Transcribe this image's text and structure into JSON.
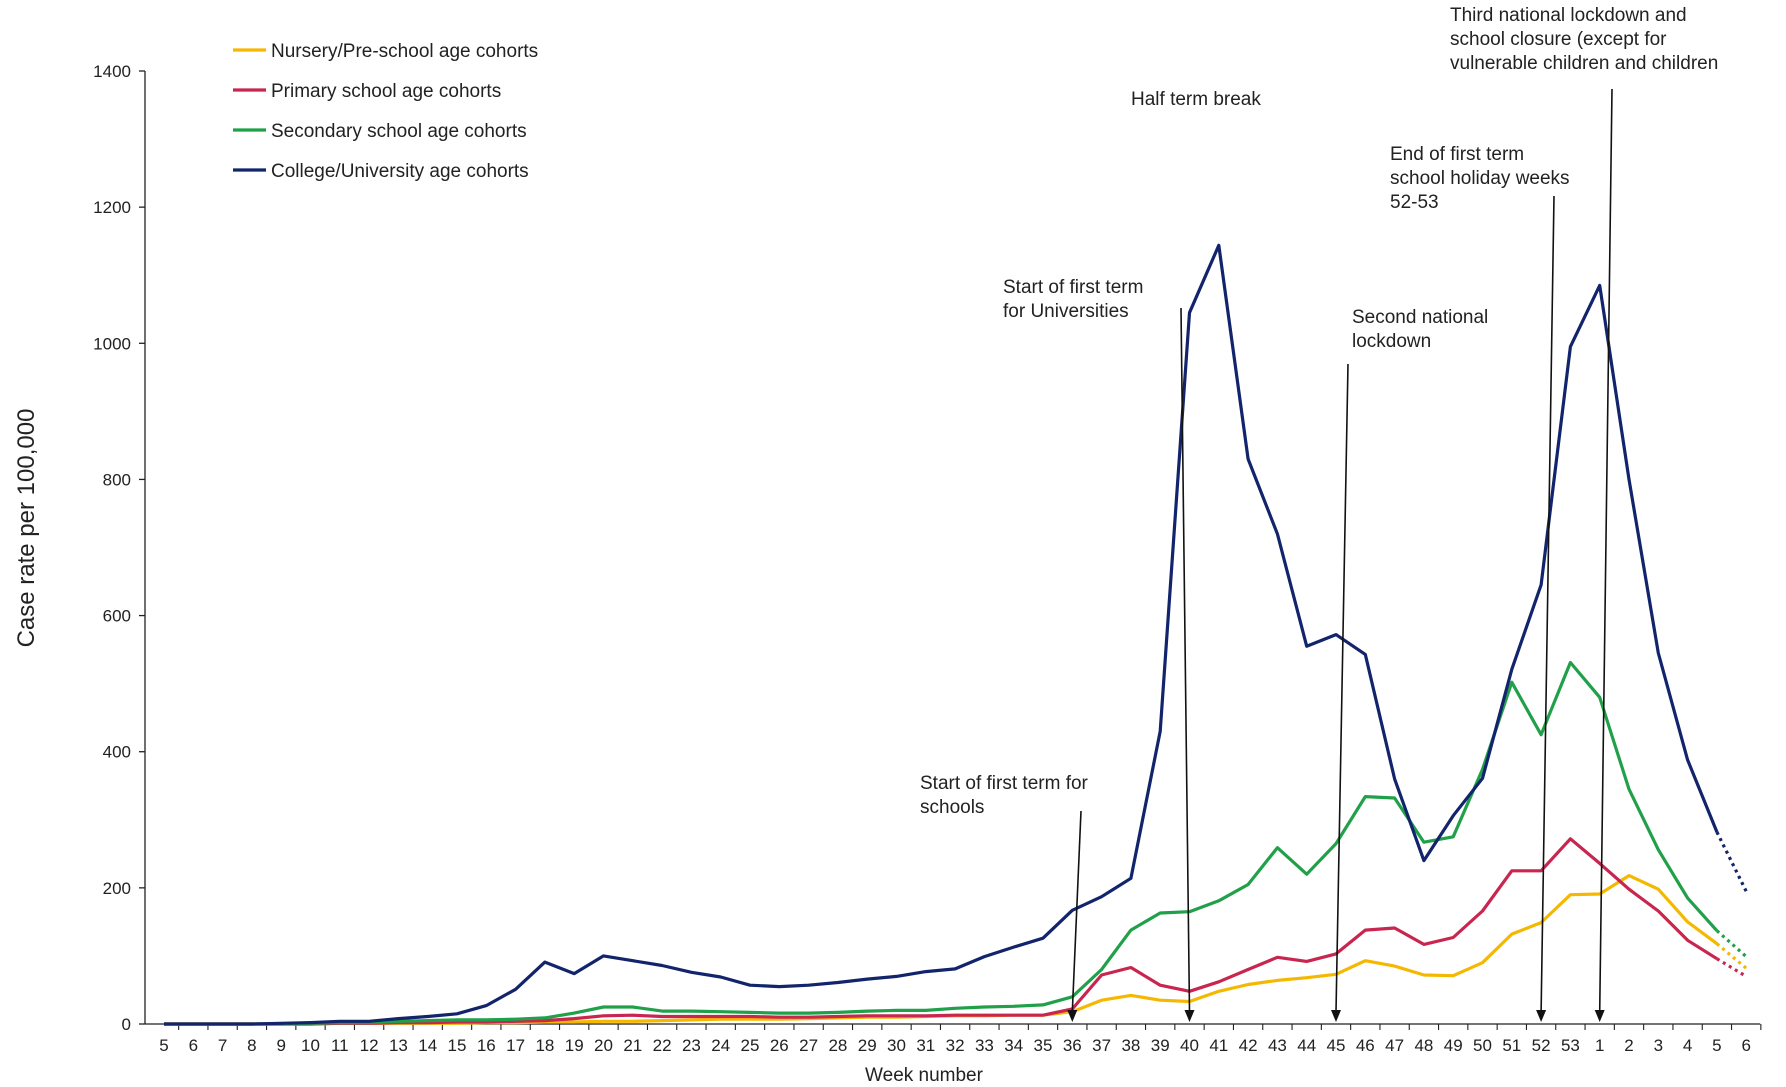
{
  "chart_data": {
    "type": "line",
    "xlabel": "Week number",
    "ylabel": "Case rate per 100,000",
    "ylim": [
      0,
      1400
    ],
    "yticks": [
      0,
      200,
      400,
      600,
      800,
      1000,
      1200,
      1400
    ],
    "categories": [
      "5",
      "6",
      "7",
      "8",
      "9",
      "10",
      "11",
      "12",
      "13",
      "14",
      "15",
      "16",
      "17",
      "18",
      "19",
      "20",
      "21",
      "22",
      "23",
      "24",
      "25",
      "26",
      "27",
      "28",
      "29",
      "30",
      "31",
      "32",
      "33",
      "34",
      "35",
      "36",
      "37",
      "38",
      "39",
      "40",
      "41",
      "42",
      "43",
      "44",
      "45",
      "46",
      "47",
      "48",
      "49",
      "50",
      "51",
      "52",
      "53",
      "1",
      "2",
      "3",
      "4",
      "5",
      "6"
    ],
    "legend_position": "top-left",
    "dotted_from_index": 53,
    "series": [
      {
        "name": "Nursery/Pre-school age cohorts",
        "color": "#F5B800",
        "values": [
          0,
          0,
          0,
          0,
          0,
          0,
          1,
          1,
          1,
          1,
          1,
          2,
          2,
          3,
          3,
          4,
          4,
          5,
          6,
          7,
          7,
          7,
          8,
          9,
          10,
          10,
          11,
          12,
          12,
          13,
          13,
          18,
          35,
          42,
          35,
          33,
          48,
          58,
          64,
          68,
          73,
          93,
          85,
          72,
          71,
          90,
          132,
          149,
          190,
          191,
          218,
          198,
          150,
          118,
          82
        ]
      },
      {
        "name": "Primary school age cohorts",
        "color": "#C8254F",
        "values": [
          0,
          0,
          0,
          0,
          0,
          0,
          1,
          1,
          2,
          2,
          3,
          3,
          4,
          5,
          8,
          12,
          13,
          11,
          11,
          11,
          11,
          10,
          10,
          11,
          12,
          12,
          12,
          13,
          13,
          13,
          13,
          22,
          72,
          83,
          57,
          48,
          62,
          80,
          98,
          92,
          103,
          138,
          141,
          117,
          127,
          166,
          225,
          225,
          272,
          236,
          198,
          166,
          123,
          96,
          70
        ]
      },
      {
        "name": "Secondary school age cohorts",
        "color": "#21A04A",
        "values": [
          0,
          0,
          0,
          0,
          0,
          1,
          2,
          2,
          4,
          5,
          6,
          6,
          7,
          9,
          16,
          25,
          25,
          19,
          19,
          18,
          17,
          16,
          16,
          17,
          19,
          20,
          20,
          23,
          25,
          26,
          28,
          40,
          80,
          138,
          163,
          165,
          181,
          205,
          259,
          220,
          265,
          334,
          332,
          267,
          275,
          374,
          502,
          425,
          531,
          480,
          345,
          256,
          185,
          137,
          99
        ]
      },
      {
        "name": "College/University age cohorts",
        "color": "#12246B",
        "values": [
          0,
          0,
          0,
          0,
          1,
          2,
          4,
          4,
          8,
          11,
          15,
          27,
          51,
          91,
          74,
          100,
          93,
          86,
          76,
          69,
          57,
          55,
          57,
          61,
          66,
          70,
          77,
          81,
          99,
          113,
          126,
          167,
          187,
          214,
          430,
          1045,
          1144,
          830,
          720,
          555,
          572,
          543,
          360,
          240,
          306,
          361,
          521,
          645,
          995,
          1085,
          800,
          545,
          388,
          282,
          195
        ]
      }
    ],
    "annotations": [
      {
        "lines": [
          "Start of first term for",
          "schools"
        ],
        "x_index": 31
      },
      {
        "lines": [
          "Start of first term",
          "for Universities"
        ],
        "x_index": 35
      },
      {
        "lines": [
          "Half term break"
        ]
      },
      {
        "lines": [
          "Second national",
          "lockdown"
        ],
        "x_index": 40
      },
      {
        "lines": [
          "End of first term",
          "school holiday weeks",
          "52-53"
        ],
        "x_index": 47
      },
      {
        "lines": [
          "Third national lockdown and",
          "school closure (except for",
          "vulnerable children and children"
        ],
        "x_index": 49
      }
    ]
  }
}
